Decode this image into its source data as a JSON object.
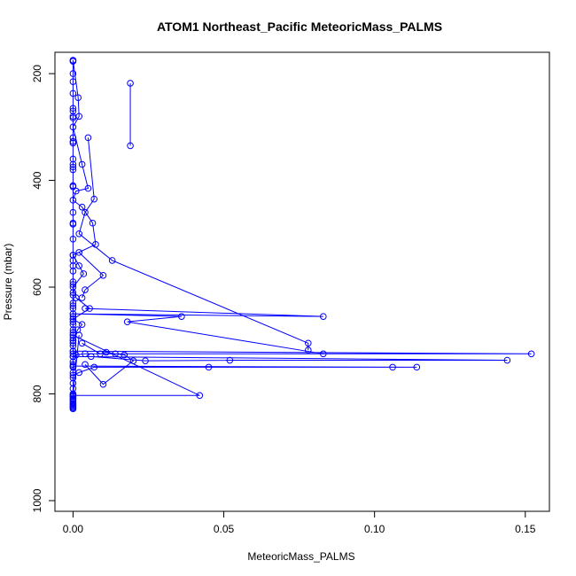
{
  "chart_data": {
    "type": "line",
    "title": "ATOM1 Northeast_Pacific MeteoricMass_PALMS",
    "xlabel": "MeteoricMass_PALMS",
    "ylabel": "Pressure (mbar)",
    "xlim": [
      -0.006,
      0.158
    ],
    "ylim": [
      1020,
      160
    ],
    "y_reversed": true,
    "x_ticks": [
      0.0,
      0.05,
      0.1,
      0.15
    ],
    "x_tick_labels": [
      "0.00",
      "0.05",
      "0.10",
      "0.15"
    ],
    "y_ticks": [
      200,
      400,
      600,
      800,
      1000
    ],
    "y_tick_labels": [
      "200",
      "400",
      "600",
      "800",
      "1000"
    ],
    "grid": false,
    "legend": "none",
    "series": [
      {
        "color": "#0000ff",
        "marker": "open-circle",
        "x": [
          0.0,
          0.0,
          0.0,
          0.0,
          0.0,
          0.0,
          0.0,
          0.0,
          0.0,
          0.0,
          0.0,
          0.0,
          0.0,
          0.0,
          0.0,
          0.0,
          0.0,
          0.0,
          0.0,
          0.0,
          0.0,
          0.0,
          0.0,
          0.0,
          0.0,
          0.0,
          0.0,
          0.0,
          0.0,
          0.0,
          0.0,
          0.0,
          0.0,
          0.0,
          0.0,
          0.0,
          0.0,
          0.0,
          0.0,
          0.0,
          0.0,
          0.0,
          0.0,
          0.0,
          0.0,
          0.0,
          0.0,
          0.0,
          0.0,
          0.0,
          0.0,
          0.0,
          0.0,
          0.0,
          0.0,
          0.0,
          0.0,
          0.0,
          0.0,
          0.0,
          0.0,
          0.0,
          0.0,
          0.0,
          0.0,
          0.0,
          0.0,
          0.0
        ],
        "y": [
          175,
          177,
          200,
          215,
          237,
          265,
          270,
          280,
          283,
          320,
          327,
          330,
          360,
          370,
          375,
          380,
          410,
          412,
          460,
          480,
          482,
          510,
          540,
          550,
          560,
          570,
          590,
          595,
          610,
          615,
          630,
          635,
          640,
          650,
          655,
          660,
          665,
          670,
          680,
          685,
          690,
          695,
          700,
          705,
          710,
          720,
          725,
          730,
          740,
          745,
          750,
          760,
          770,
          780,
          790,
          800,
          802,
          805,
          808,
          810,
          812,
          815,
          818,
          820,
          822,
          824,
          826,
          828
        ]
      },
      {
        "color": "#0000ff",
        "marker": "open-circle",
        "x": [
          0.0,
          0.0017,
          0.002,
          0.0,
          0.003,
          0.005,
          0.001,
          0.0,
          0.003,
          0.0065,
          0.0075,
          0.0,
          0.002,
          0.0035,
          0.0,
          0.001,
          0.0055,
          0.0,
          0.003,
          0.0015,
          0.0
        ],
        "y": [
          175,
          245,
          280,
          300,
          370,
          415,
          420,
          437,
          450,
          480,
          520,
          540,
          560,
          575,
          600,
          620,
          640,
          660,
          670,
          680,
          700
        ]
      },
      {
        "color": "#0000ff",
        "marker": "open-circle",
        "x": [
          0.019,
          0.019
        ],
        "y": [
          218,
          335
        ]
      },
      {
        "color": "#0000ff",
        "marker": "open-circle",
        "x": [
          0.005,
          0.007,
          0.004,
          0.002,
          0.013,
          0.078,
          0.078
        ],
        "y": [
          320,
          435,
          460,
          500,
          550,
          705,
          718
        ]
      },
      {
        "color": "#0000ff",
        "marker": "open-circle",
        "x": [
          0.002,
          0.01,
          0.004,
          0.003
        ],
        "y": [
          535,
          578,
          605,
          620
        ]
      },
      {
        "color": "#0000ff",
        "marker": "open-circle",
        "x": [
          0.004,
          0.083,
          0.0,
          0.036,
          0.018,
          0.083
        ],
        "y": [
          640,
          655,
          650,
          655,
          665,
          725
        ]
      },
      {
        "color": "#0000ff",
        "marker": "open-circle",
        "x": [
          0.0,
          0.152,
          0.004,
          0.001,
          0.0,
          0.144,
          0.052,
          0.024,
          0.006
        ],
        "y": [
          720,
          725,
          725,
          727,
          730,
          737,
          737,
          738,
          730
        ]
      },
      {
        "color": "#0000ff",
        "marker": "open-circle",
        "x": [
          0.0,
          0.114,
          0.106,
          0.045,
          0.007,
          0.002,
          0.0
        ],
        "y": [
          748,
          750,
          750,
          750,
          750,
          760,
          765
        ]
      },
      {
        "color": "#0000ff",
        "marker": "open-circle",
        "x": [
          0.003,
          0.009,
          0.011,
          0.014,
          0.017,
          0.02,
          0.01,
          0.004
        ],
        "y": [
          705,
          725,
          722,
          725,
          727,
          738,
          782,
          745
        ]
      },
      {
        "color": "#0000ff",
        "marker": "open-circle",
        "x": [
          0.0,
          0.042,
          0.0,
          0.002
        ],
        "y": [
          690,
          803,
          803,
          690
        ]
      }
    ]
  }
}
